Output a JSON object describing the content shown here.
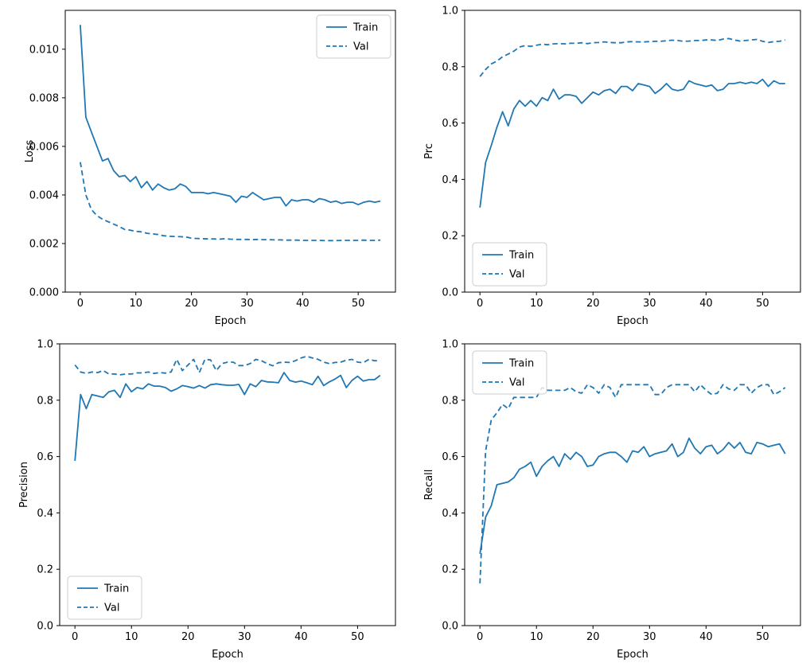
{
  "figure": {
    "background": "#ffffff",
    "line_color": "#1f77b4",
    "spine_color": "#000000",
    "legend_labels": [
      "Train",
      "Val"
    ]
  },
  "chart_data": [
    {
      "id": "loss",
      "type": "line",
      "title": "",
      "xlabel": "Epoch",
      "ylabel": "Loss",
      "xlim": [
        -2.7,
        56.7
      ],
      "ylim": [
        0,
        0.0116
      ],
      "xticks": [
        0,
        10,
        20,
        30,
        40,
        50
      ],
      "xtick_labels": [
        "0",
        "10",
        "20",
        "30",
        "40",
        "50"
      ],
      "yticks": [
        0.0,
        0.002,
        0.004,
        0.006,
        0.008,
        0.01
      ],
      "ytick_labels": [
        "0.000",
        "0.002",
        "0.004",
        "0.006",
        "0.008",
        "0.010"
      ],
      "grid": false,
      "legend_pos": "upper-right",
      "x_start": 0,
      "x_step": 1,
      "series": [
        {
          "name": "Train",
          "style": "solid",
          "values": [
            0.011,
            0.0072,
            0.0066,
            0.006,
            0.0054,
            0.0055,
            0.005,
            0.00475,
            0.0048,
            0.00455,
            0.00475,
            0.0043,
            0.00455,
            0.0042,
            0.00445,
            0.0043,
            0.0042,
            0.00425,
            0.00445,
            0.00435,
            0.0041,
            0.0041,
            0.0041,
            0.00405,
            0.0041,
            0.00405,
            0.004,
            0.00395,
            0.0037,
            0.00395,
            0.0039,
            0.0041,
            0.00395,
            0.0038,
            0.00385,
            0.0039,
            0.0039,
            0.00355,
            0.0038,
            0.00375,
            0.0038,
            0.0038,
            0.0037,
            0.00385,
            0.0038,
            0.0037,
            0.00375,
            0.00365,
            0.0037,
            0.0037,
            0.0036,
            0.0037,
            0.00375,
            0.0037,
            0.00375
          ]
        },
        {
          "name": "Val",
          "style": "dashed",
          "values": [
            0.00535,
            0.004,
            0.0034,
            0.00315,
            0.003,
            0.0029,
            0.0028,
            0.0027,
            0.00258,
            0.00255,
            0.0025,
            0.00248,
            0.00242,
            0.0024,
            0.00237,
            0.00232,
            0.0023,
            0.00229,
            0.00228,
            0.00227,
            0.00222,
            0.00221,
            0.0022,
            0.00219,
            0.00219,
            0.00218,
            0.0022,
            0.00218,
            0.00217,
            0.00217,
            0.00217,
            0.00216,
            0.00217,
            0.00216,
            0.00216,
            0.00215,
            0.00215,
            0.00214,
            0.00214,
            0.00214,
            0.00213,
            0.00213,
            0.00213,
            0.00213,
            0.00212,
            0.00212,
            0.00212,
            0.00213,
            0.00213,
            0.00213,
            0.00213,
            0.00214,
            0.00213,
            0.00213,
            0.00214
          ]
        }
      ]
    },
    {
      "id": "prc",
      "type": "line",
      "title": "",
      "xlabel": "Epoch",
      "ylabel": "Prc",
      "xlim": [
        -2.7,
        56.7
      ],
      "ylim": [
        0,
        1
      ],
      "xticks": [
        0,
        10,
        20,
        30,
        40,
        50
      ],
      "xtick_labels": [
        "0",
        "10",
        "20",
        "30",
        "40",
        "50"
      ],
      "yticks": [
        0.0,
        0.2,
        0.4,
        0.6,
        0.8,
        1.0
      ],
      "ytick_labels": [
        "0.0",
        "0.2",
        "0.4",
        "0.6",
        "0.8",
        "1.0"
      ],
      "grid": false,
      "legend_pos": "lower-left",
      "x_start": 0,
      "x_step": 1,
      "series": [
        {
          "name": "Train",
          "style": "solid",
          "values": [
            0.3,
            0.46,
            0.52,
            0.585,
            0.64,
            0.59,
            0.65,
            0.68,
            0.66,
            0.68,
            0.66,
            0.69,
            0.68,
            0.72,
            0.685,
            0.7,
            0.7,
            0.695,
            0.67,
            0.69,
            0.71,
            0.7,
            0.715,
            0.72,
            0.705,
            0.73,
            0.73,
            0.715,
            0.74,
            0.735,
            0.73,
            0.705,
            0.72,
            0.74,
            0.72,
            0.715,
            0.72,
            0.75,
            0.74,
            0.735,
            0.73,
            0.735,
            0.715,
            0.72,
            0.74,
            0.74,
            0.745,
            0.74,
            0.745,
            0.74,
            0.755,
            0.73,
            0.75,
            0.74,
            0.74
          ]
        },
        {
          "name": "Val",
          "style": "dashed",
          "values": [
            0.765,
            0.79,
            0.81,
            0.82,
            0.835,
            0.845,
            0.855,
            0.87,
            0.875,
            0.872,
            0.876,
            0.88,
            0.878,
            0.881,
            0.882,
            0.881,
            0.883,
            0.883,
            0.885,
            0.882,
            0.885,
            0.886,
            0.888,
            0.886,
            0.885,
            0.885,
            0.888,
            0.889,
            0.888,
            0.888,
            0.889,
            0.89,
            0.89,
            0.892,
            0.894,
            0.893,
            0.89,
            0.891,
            0.893,
            0.893,
            0.895,
            0.895,
            0.893,
            0.898,
            0.9,
            0.895,
            0.891,
            0.893,
            0.895,
            0.897,
            0.89,
            0.886,
            0.889,
            0.89,
            0.895
          ]
        }
      ]
    },
    {
      "id": "precision",
      "type": "line",
      "title": "",
      "xlabel": "Epoch",
      "ylabel": "Precision",
      "xlim": [
        -2.7,
        56.7
      ],
      "ylim": [
        0,
        1
      ],
      "xticks": [
        0,
        10,
        20,
        30,
        40,
        50
      ],
      "xtick_labels": [
        "0",
        "10",
        "20",
        "30",
        "40",
        "50"
      ],
      "yticks": [
        0.0,
        0.2,
        0.4,
        0.6,
        0.8,
        1.0
      ],
      "ytick_labels": [
        "0.0",
        "0.2",
        "0.4",
        "0.6",
        "0.8",
        "1.0"
      ],
      "grid": false,
      "legend_pos": "lower-left",
      "x_start": 0,
      "x_step": 1,
      "series": [
        {
          "name": "Train",
          "style": "solid",
          "values": [
            0.585,
            0.82,
            0.77,
            0.82,
            0.815,
            0.81,
            0.83,
            0.835,
            0.81,
            0.858,
            0.83,
            0.845,
            0.84,
            0.858,
            0.85,
            0.85,
            0.845,
            0.832,
            0.84,
            0.852,
            0.848,
            0.843,
            0.852,
            0.843,
            0.855,
            0.858,
            0.855,
            0.853,
            0.853,
            0.856,
            0.82,
            0.858,
            0.848,
            0.87,
            0.865,
            0.864,
            0.862,
            0.898,
            0.87,
            0.864,
            0.868,
            0.862,
            0.855,
            0.885,
            0.852,
            0.865,
            0.875,
            0.888,
            0.845,
            0.87,
            0.885,
            0.868,
            0.873,
            0.873,
            0.888
          ]
        },
        {
          "name": "Val",
          "style": "dashed",
          "values": [
            0.925,
            0.9,
            0.895,
            0.9,
            0.898,
            0.905,
            0.893,
            0.893,
            0.89,
            0.893,
            0.893,
            0.897,
            0.897,
            0.9,
            0.895,
            0.898,
            0.896,
            0.9,
            0.945,
            0.905,
            0.925,
            0.945,
            0.898,
            0.945,
            0.943,
            0.905,
            0.93,
            0.935,
            0.935,
            0.923,
            0.923,
            0.93,
            0.945,
            0.94,
            0.93,
            0.922,
            0.933,
            0.935,
            0.934,
            0.94,
            0.95,
            0.956,
            0.95,
            0.945,
            0.935,
            0.93,
            0.934,
            0.935,
            0.942,
            0.945,
            0.935,
            0.933,
            0.945,
            0.94,
            0.94
          ]
        }
      ]
    },
    {
      "id": "recall",
      "type": "line",
      "title": "",
      "xlabel": "Epoch",
      "ylabel": "Recall",
      "xlim": [
        -2.7,
        56.7
      ],
      "ylim": [
        0,
        1
      ],
      "xticks": [
        0,
        10,
        20,
        30,
        40,
        50
      ],
      "xtick_labels": [
        "0",
        "10",
        "20",
        "30",
        "40",
        "50"
      ],
      "yticks": [
        0.0,
        0.2,
        0.4,
        0.6,
        0.8,
        1.0
      ],
      "ytick_labels": [
        "0.0",
        "0.2",
        "0.4",
        "0.6",
        "0.8",
        "1.0"
      ],
      "grid": false,
      "legend_pos": "upper-left",
      "x_start": 0,
      "x_step": 1,
      "series": [
        {
          "name": "Train",
          "style": "solid",
          "values": [
            0.255,
            0.385,
            0.425,
            0.5,
            0.505,
            0.51,
            0.525,
            0.555,
            0.565,
            0.58,
            0.53,
            0.565,
            0.585,
            0.6,
            0.565,
            0.61,
            0.59,
            0.615,
            0.6,
            0.565,
            0.57,
            0.6,
            0.61,
            0.615,
            0.615,
            0.6,
            0.58,
            0.62,
            0.615,
            0.635,
            0.6,
            0.61,
            0.615,
            0.62,
            0.645,
            0.6,
            0.615,
            0.665,
            0.63,
            0.61,
            0.635,
            0.64,
            0.61,
            0.625,
            0.65,
            0.63,
            0.65,
            0.615,
            0.61,
            0.65,
            0.645,
            0.635,
            0.64,
            0.645,
            0.61
          ]
        },
        {
          "name": "Val",
          "style": "dashed",
          "values": [
            0.15,
            0.62,
            0.73,
            0.755,
            0.785,
            0.77,
            0.81,
            0.81,
            0.81,
            0.81,
            0.81,
            0.845,
            0.835,
            0.835,
            0.835,
            0.835,
            0.845,
            0.83,
            0.825,
            0.855,
            0.845,
            0.825,
            0.855,
            0.845,
            0.81,
            0.855,
            0.855,
            0.855,
            0.855,
            0.855,
            0.855,
            0.82,
            0.82,
            0.845,
            0.855,
            0.855,
            0.855,
            0.855,
            0.83,
            0.855,
            0.835,
            0.82,
            0.825,
            0.855,
            0.84,
            0.835,
            0.855,
            0.855,
            0.825,
            0.845,
            0.855,
            0.855,
            0.82,
            0.83,
            0.845
          ]
        }
      ]
    }
  ]
}
